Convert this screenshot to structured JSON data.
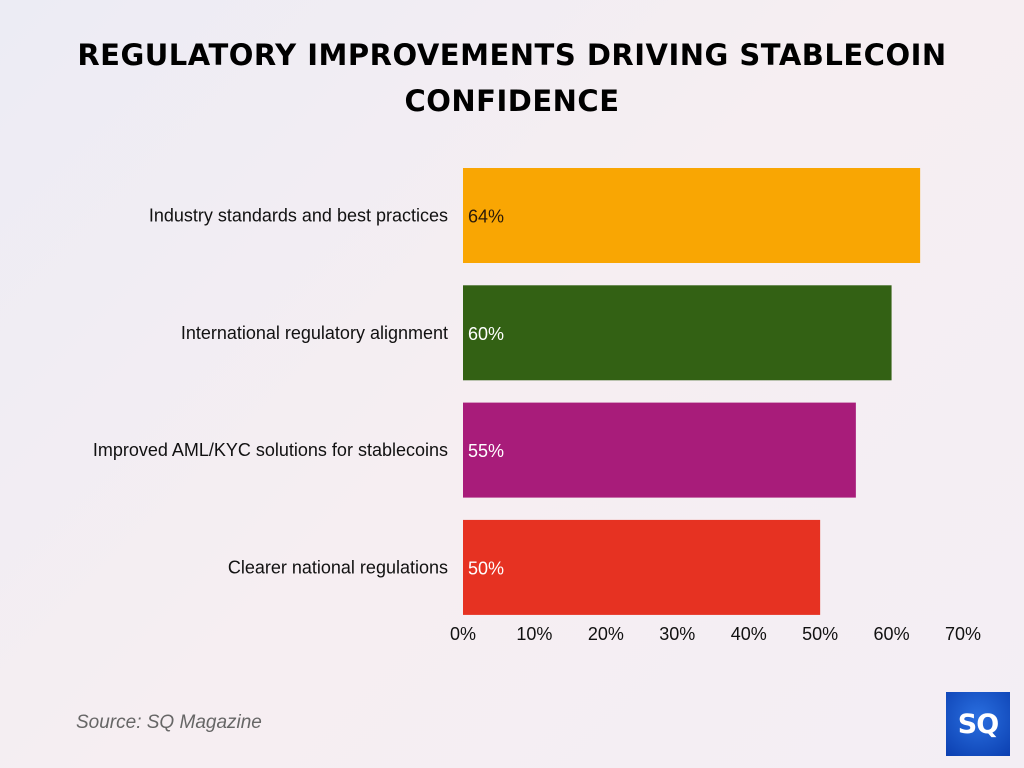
{
  "chart_data": {
    "type": "bar",
    "orientation": "horizontal",
    "title": "REGULATORY IMPROVEMENTS DRIVING STABLECOIN CONFIDENCE",
    "categories": [
      "Industry standards and best practices",
      "International regulatory alignment",
      "Improved AML/KYC solutions for stablecoins",
      "Clearer national regulations"
    ],
    "values": [
      64,
      60,
      55,
      50
    ],
    "data_labels": [
      "64%",
      "60%",
      "55%",
      "50%"
    ],
    "colors": [
      "#F9A603",
      "#336114",
      "#A81C7A",
      "#E63222"
    ],
    "label_colors": [
      "#2a1a0a",
      "#ffffff",
      "#ffffff",
      "#ffffff"
    ],
    "xlim": [
      0,
      70
    ],
    "xticks": [
      "0%",
      "10%",
      "20%",
      "30%",
      "40%",
      "50%",
      "60%",
      "70%"
    ],
    "grid": false
  },
  "source": "Source: SQ Magazine",
  "logo": "SQ"
}
